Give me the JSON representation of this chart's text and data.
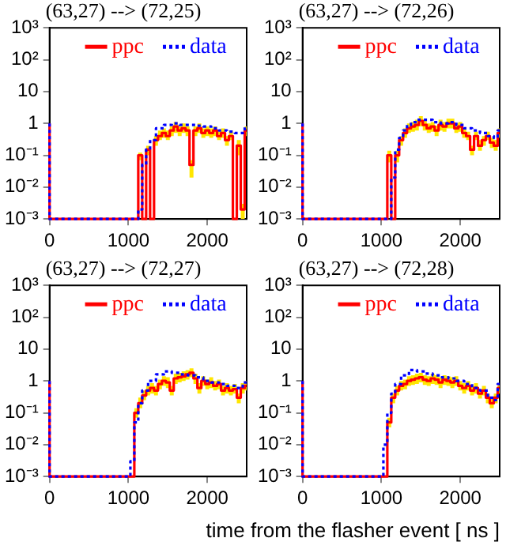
{
  "chart_data": [
    {
      "type": "step",
      "title": "(63,27) --> (72,25)",
      "log": "y",
      "grid": false,
      "legend": "top",
      "marker": "none",
      "xlim": [
        0,
        2500
      ],
      "xticks": [
        0,
        1000,
        2000
      ],
      "ylim": [
        0.001,
        1000
      ],
      "yticks": [
        {
          "value": 0.001,
          "label": "10⁻³"
        },
        {
          "value": 0.01,
          "label": "10⁻²"
        },
        {
          "value": 0.1,
          "label": "10⁻¹"
        },
        {
          "value": 1,
          "label": "1"
        },
        {
          "value": 10,
          "label": "10"
        },
        {
          "value": 100,
          "label": "10²"
        },
        {
          "value": 1000,
          "label": "10³"
        }
      ],
      "series": [
        {
          "name": "ppc",
          "color": "#ff0000",
          "line_style": "solid",
          "x": [
            0,
            0,
            1100,
            1150,
            1200,
            1250,
            1300,
            1350,
            1400,
            1450,
            1500,
            1550,
            1600,
            1650,
            1700,
            1750,
            1800,
            1850,
            1900,
            1950,
            2000,
            2050,
            2100,
            2150,
            2200,
            2250,
            2300,
            2350,
            2400,
            2450,
            2500
          ],
          "values": [
            1,
            0.001,
            0.001,
            0.1,
            0.001,
            0.15,
            0.001,
            0.3,
            0.4,
            0.5,
            0.4,
            0.6,
            0.8,
            0.6,
            0.7,
            0.6,
            0.05,
            0.6,
            0.7,
            0.5,
            0.6,
            0.5,
            0.6,
            0.4,
            0.5,
            0.3,
            0.4,
            0.001,
            0.2,
            0.002,
            0.6
          ],
          "lower": [
            1,
            0.001,
            0.001,
            0.07,
            0.001,
            0.1,
            0.001,
            0.2,
            0.3,
            0.35,
            0.3,
            0.4,
            0.5,
            0.4,
            0.5,
            0.4,
            0.02,
            0.4,
            0.5,
            0.35,
            0.4,
            0.35,
            0.4,
            0.3,
            0.35,
            0.2,
            0.3,
            0.001,
            0.1,
            0.001,
            0.4
          ],
          "upper": [
            1,
            0.001,
            0.001,
            0.12,
            0.001,
            0.2,
            0.001,
            0.4,
            0.6,
            0.7,
            0.6,
            0.8,
            1.1,
            0.8,
            1,
            0.8,
            0.07,
            0.8,
            1,
            0.7,
            0.8,
            0.7,
            0.8,
            0.6,
            0.7,
            0.4,
            0.6,
            0.001,
            0.3,
            0.003,
            0.8
          ]
        },
        {
          "name": "data",
          "color": "#0000ff",
          "line_style": "dotted",
          "x": [
            0,
            0,
            1100,
            1150,
            1200,
            1250,
            1300,
            1400,
            1500,
            1600,
            1700,
            1800,
            1900,
            2000,
            2100,
            2200,
            2300,
            2400,
            2450,
            2500
          ],
          "values": [
            1,
            0.001,
            0.001,
            0.002,
            0.05,
            0.15,
            0.3,
            0.7,
            0.9,
            1,
            0.9,
            0.9,
            0.85,
            0.8,
            0.7,
            0.6,
            0.55,
            0.5,
            0.5,
            0.8
          ]
        }
      ]
    },
    {
      "type": "step",
      "title": "(63,27) --> (72,26)",
      "log": "y",
      "grid": false,
      "legend": "top",
      "marker": "none",
      "xlim": [
        0,
        2500
      ],
      "xticks": [
        0,
        1000,
        2000
      ],
      "ylim": [
        0.001,
        1000
      ],
      "yticks": [
        {
          "value": 0.001,
          "label": "10⁻³"
        },
        {
          "value": 0.01,
          "label": "10⁻²"
        },
        {
          "value": 0.1,
          "label": "10⁻¹"
        },
        {
          "value": 1,
          "label": "1"
        },
        {
          "value": 10,
          "label": "10"
        },
        {
          "value": 100,
          "label": "10²"
        },
        {
          "value": 1000,
          "label": "10³"
        }
      ],
      "series": [
        {
          "name": "ppc",
          "color": "#ff0000",
          "line_style": "solid",
          "x": [
            0,
            0,
            1050,
            1100,
            1150,
            1200,
            1250,
            1300,
            1350,
            1400,
            1450,
            1500,
            1550,
            1600,
            1650,
            1700,
            1750,
            1800,
            1850,
            1900,
            1950,
            2000,
            2050,
            2100,
            2150,
            2200,
            2250,
            2300,
            2350,
            2400,
            2450,
            2500
          ],
          "values": [
            1,
            0.001,
            0.001,
            0.1,
            0.001,
            0.1,
            0.3,
            0.5,
            0.7,
            0.8,
            0.9,
            1.2,
            0.9,
            0.7,
            0.8,
            0.6,
            0.9,
            0.8,
            1,
            1,
            0.7,
            0.8,
            0.5,
            0.4,
            0.15,
            0.4,
            0.2,
            0.3,
            0.4,
            0.25,
            0.2,
            0.5
          ],
          "lower": [
            1,
            0.001,
            0.001,
            0.06,
            0.001,
            0.06,
            0.2,
            0.35,
            0.5,
            0.55,
            0.6,
            0.8,
            0.6,
            0.5,
            0.55,
            0.4,
            0.6,
            0.55,
            0.7,
            0.7,
            0.5,
            0.55,
            0.35,
            0.3,
            0.1,
            0.3,
            0.14,
            0.2,
            0.3,
            0.17,
            0.14,
            0.35
          ],
          "upper": [
            1,
            0.001,
            0.001,
            0.14,
            0.001,
            0.14,
            0.4,
            0.7,
            1,
            1.1,
            1.3,
            1.7,
            1.3,
            1,
            1.1,
            0.85,
            1.3,
            1.1,
            1.4,
            1.4,
            1,
            1.1,
            0.7,
            0.55,
            0.2,
            0.55,
            0.3,
            0.4,
            0.55,
            0.35,
            0.3,
            0.7
          ]
        },
        {
          "name": "data",
          "color": "#0000ff",
          "line_style": "dotted",
          "x": [
            0,
            0,
            1100,
            1150,
            1200,
            1250,
            1300,
            1350,
            1400,
            1500,
            1600,
            1700,
            1800,
            1900,
            2000,
            2100,
            2200,
            2300,
            2400,
            2450,
            2500
          ],
          "values": [
            1,
            0.001,
            0.001,
            0.02,
            0.15,
            0.35,
            0.6,
            0.9,
            1.1,
            1.3,
            1.3,
            1.1,
            1,
            1.1,
            0.9,
            0.7,
            0.6,
            0.5,
            0.4,
            0.35,
            0.6
          ]
        }
      ]
    },
    {
      "type": "step",
      "title": "(63,27) --> (72,27)",
      "log": "y",
      "grid": false,
      "legend": "top",
      "marker": "none",
      "xlim": [
        0,
        2500
      ],
      "xticks": [
        0,
        1000,
        2000
      ],
      "ylim": [
        0.001,
        1000
      ],
      "yticks": [
        {
          "value": 0.001,
          "label": "10⁻³"
        },
        {
          "value": 0.01,
          "label": "10⁻²"
        },
        {
          "value": 0.1,
          "label": "10⁻¹"
        },
        {
          "value": 1,
          "label": "1"
        },
        {
          "value": 10,
          "label": "10"
        },
        {
          "value": 100,
          "label": "10²"
        },
        {
          "value": 1000,
          "label": "10³"
        }
      ],
      "series": [
        {
          "name": "ppc",
          "color": "#ff0000",
          "line_style": "solid",
          "x": [
            0,
            0,
            1050,
            1100,
            1150,
            1200,
            1250,
            1300,
            1350,
            1400,
            1450,
            1500,
            1550,
            1600,
            1650,
            1700,
            1750,
            1800,
            1850,
            1900,
            1950,
            2000,
            2050,
            2100,
            2150,
            2200,
            2250,
            2300,
            2350,
            2400,
            2450,
            2500
          ],
          "values": [
            1,
            0.001,
            0.001,
            0.1,
            0.2,
            0.35,
            0.5,
            0.6,
            0.5,
            0.8,
            1,
            0.9,
            0.5,
            1.2,
            1.3,
            1.4,
            1.6,
            1.8,
            1.2,
            0.6,
            1,
            0.8,
            0.9,
            0.7,
            0.8,
            0.5,
            0.6,
            0.5,
            0.55,
            0.3,
            0.6,
            0.7
          ],
          "lower": [
            1,
            0.001,
            0.001,
            0.07,
            0.14,
            0.25,
            0.35,
            0.4,
            0.35,
            0.55,
            0.7,
            0.6,
            0.35,
            0.8,
            0.9,
            1,
            1.1,
            1.3,
            0.8,
            0.4,
            0.7,
            0.55,
            0.6,
            0.5,
            0.55,
            0.35,
            0.4,
            0.35,
            0.4,
            0.2,
            0.4,
            0.5
          ],
          "upper": [
            1,
            0.001,
            0.001,
            0.14,
            0.3,
            0.5,
            0.7,
            0.85,
            0.7,
            1.1,
            1.4,
            1.3,
            0.7,
            1.7,
            1.8,
            2,
            2.2,
            2.5,
            1.7,
            0.85,
            1.4,
            1.1,
            1.3,
            1,
            1.1,
            0.7,
            0.85,
            0.7,
            0.8,
            0.4,
            0.85,
            1
          ]
        },
        {
          "name": "data",
          "color": "#0000ff",
          "line_style": "dotted",
          "x": [
            0,
            0,
            1000,
            1050,
            1100,
            1150,
            1200,
            1300,
            1400,
            1500,
            1600,
            1700,
            1800,
            1900,
            2000,
            2100,
            2200,
            2300,
            2400,
            2500
          ],
          "values": [
            1,
            0.001,
            0.001,
            0.003,
            0.05,
            0.2,
            0.5,
            1,
            1.6,
            2,
            1.8,
            1.6,
            1.5,
            1.3,
            1,
            0.9,
            0.8,
            0.7,
            0.6,
            0.9
          ]
        }
      ]
    },
    {
      "type": "step",
      "title": "(63,27) --> (72,28)",
      "log": "y",
      "grid": false,
      "legend": "top",
      "marker": "none",
      "xlabel": "time from the flasher event [ ns ]",
      "xlim": [
        0,
        2500
      ],
      "xticks": [
        0,
        1000,
        2000
      ],
      "ylim": [
        0.001,
        1000
      ],
      "yticks": [
        {
          "value": 0.001,
          "label": "10⁻³"
        },
        {
          "value": 0.01,
          "label": "10⁻²"
        },
        {
          "value": 0.1,
          "label": "10⁻¹"
        },
        {
          "value": 1,
          "label": "1"
        },
        {
          "value": 10,
          "label": "10"
        },
        {
          "value": 100,
          "label": "10²"
        },
        {
          "value": 1000,
          "label": "10³"
        }
      ],
      "series": [
        {
          "name": "ppc",
          "color": "#ff0000",
          "line_style": "solid",
          "x": [
            0,
            0,
            1050,
            1100,
            1150,
            1200,
            1250,
            1300,
            1350,
            1400,
            1450,
            1500,
            1550,
            1600,
            1650,
            1700,
            1750,
            1800,
            1850,
            1900,
            1950,
            2000,
            2050,
            2100,
            2150,
            2200,
            2250,
            2300,
            2350,
            2400,
            2450,
            2500
          ],
          "values": [
            1,
            0.001,
            0.001,
            0.05,
            0.3,
            0.5,
            0.7,
            0.8,
            1,
            1.1,
            1.2,
            1.3,
            1.1,
            1,
            1.2,
            1.1,
            0.9,
            1.1,
            1,
            0.9,
            1,
            0.7,
            0.6,
            0.7,
            0.5,
            0.6,
            0.4,
            0.5,
            0.3,
            0.2,
            0.3,
            0.6
          ],
          "lower": [
            1,
            0.001,
            0.001,
            0.035,
            0.2,
            0.35,
            0.5,
            0.55,
            0.7,
            0.75,
            0.8,
            0.9,
            0.75,
            0.7,
            0.8,
            0.75,
            0.6,
            0.75,
            0.7,
            0.6,
            0.7,
            0.5,
            0.4,
            0.5,
            0.35,
            0.4,
            0.28,
            0.35,
            0.2,
            0.14,
            0.2,
            0.4
          ],
          "upper": [
            1,
            0.001,
            0.001,
            0.07,
            0.4,
            0.7,
            1,
            1.1,
            1.4,
            1.5,
            1.7,
            1.8,
            1.5,
            1.4,
            1.7,
            1.5,
            1.3,
            1.5,
            1.4,
            1.3,
            1.4,
            1,
            0.85,
            1,
            0.7,
            0.85,
            0.55,
            0.7,
            0.4,
            0.28,
            0.4,
            0.85
          ]
        },
        {
          "name": "data",
          "color": "#0000ff",
          "line_style": "dotted",
          "x": [
            0,
            0,
            1000,
            1050,
            1100,
            1150,
            1200,
            1300,
            1400,
            1500,
            1600,
            1700,
            1800,
            1900,
            2000,
            2100,
            2200,
            2300,
            2400,
            2450,
            2500
          ],
          "values": [
            1,
            0.001,
            0.001,
            0.01,
            0.1,
            0.4,
            0.8,
            1.5,
            2.2,
            2,
            1.7,
            1.5,
            1.3,
            1.2,
            1,
            0.8,
            0.6,
            0.5,
            0.3,
            0.25,
            0.8
          ]
        }
      ]
    }
  ]
}
